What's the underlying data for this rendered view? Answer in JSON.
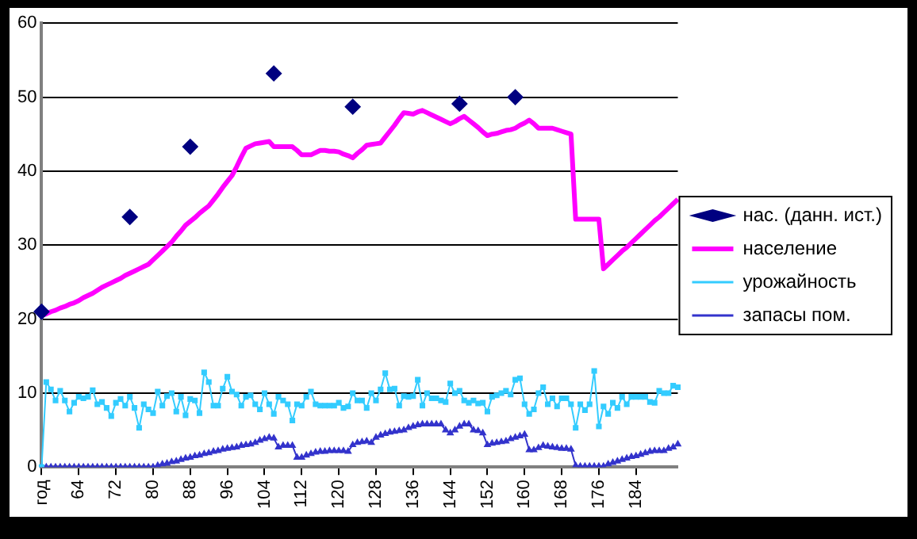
{
  "chart_data": {
    "type": "line",
    "categories": [
      "год",
      null,
      null,
      null,
      null,
      null,
      null,
      null,
      "64",
      null,
      null,
      null,
      null,
      null,
      null,
      null,
      "72",
      null,
      null,
      null,
      null,
      null,
      null,
      null,
      "80",
      null,
      null,
      null,
      null,
      null,
      null,
      null,
      "88",
      null,
      null,
      null,
      null,
      null,
      null,
      null,
      "96",
      null,
      null,
      null,
      null,
      null,
      null,
      null,
      "104",
      null,
      null,
      null,
      null,
      null,
      null,
      null,
      "112",
      null,
      null,
      null,
      null,
      null,
      null,
      null,
      "120",
      null,
      null,
      null,
      null,
      null,
      null,
      null,
      "128",
      null,
      null,
      null,
      null,
      null,
      null,
      null,
      "136",
      null,
      null,
      null,
      null,
      null,
      null,
      null,
      "144",
      null,
      null,
      null,
      null,
      null,
      null,
      null,
      "152",
      null,
      null,
      null,
      null,
      null,
      null,
      null,
      "160",
      null,
      null,
      null,
      null,
      null,
      null,
      null,
      "168",
      null,
      null,
      null,
      null,
      null,
      null,
      null,
      "176",
      null,
      null,
      null,
      null,
      null,
      null,
      null,
      "184",
      null,
      null,
      null,
      null,
      null,
      null,
      null,
      null,
      null
    ],
    "series": [
      {
        "name": "нас. (данн. ист.)",
        "type": "scatter",
        "marker": "diamond",
        "color": "#000080",
        "values": [
          21,
          null,
          null,
          null,
          null,
          null,
          null,
          null,
          null,
          null,
          null,
          null,
          null,
          null,
          null,
          null,
          null,
          null,
          null,
          33.8,
          null,
          null,
          null,
          null,
          null,
          null,
          null,
          null,
          null,
          null,
          null,
          null,
          43.3,
          null,
          null,
          null,
          null,
          null,
          null,
          null,
          null,
          null,
          null,
          null,
          null,
          null,
          null,
          null,
          null,
          null,
          53.2,
          null,
          null,
          null,
          null,
          null,
          null,
          null,
          null,
          null,
          null,
          null,
          null,
          null,
          null,
          null,
          null,
          48.7,
          null,
          null,
          null,
          null,
          null,
          null,
          null,
          null,
          null,
          null,
          null,
          null,
          null,
          null,
          null,
          null,
          null,
          null,
          null,
          null,
          null,
          null,
          49.1,
          null,
          null,
          null,
          null,
          null,
          null,
          null,
          null,
          null,
          null,
          null,
          50.0,
          null,
          null,
          null,
          null,
          null,
          null,
          null,
          null,
          null,
          null,
          null,
          null,
          null,
          null,
          null,
          null,
          null,
          null,
          null,
          null,
          null,
          null,
          null,
          null,
          null,
          null,
          null,
          null,
          null,
          null,
          null,
          null,
          null,
          null,
          null
        ]
      },
      {
        "name": "население",
        "type": "line",
        "marker": "none",
        "color": "#ff00ff",
        "values": [
          20.5,
          20.7,
          21.0,
          21.2,
          21.5,
          21.7,
          22.0,
          22.2,
          22.5,
          22.9,
          23.2,
          23.5,
          23.9,
          24.3,
          24.6,
          24.9,
          25.2,
          25.5,
          25.9,
          26.2,
          26.5,
          26.8,
          27.1,
          27.4,
          28.0,
          28.6,
          29.2,
          29.8,
          30.4,
          31.2,
          31.9,
          32.7,
          33.2,
          33.7,
          34.3,
          34.8,
          35.3,
          36.1,
          36.9,
          37.8,
          38.6,
          39.4,
          40.6,
          41.9,
          43.1,
          43.4,
          43.7,
          43.8,
          43.9,
          44.0,
          43.3,
          43.3,
          43.3,
          43.3,
          43.3,
          42.8,
          42.2,
          42.2,
          42.2,
          42.5,
          42.8,
          42.8,
          42.7,
          42.7,
          42.6,
          42.3,
          42.1,
          41.8,
          42.4,
          42.9,
          43.5,
          43.6,
          43.7,
          43.8,
          44.6,
          45.4,
          46.2,
          47.1,
          47.9,
          47.8,
          47.7,
          48.0,
          48.2,
          47.9,
          47.6,
          47.3,
          47.0,
          46.7,
          46.4,
          46.7,
          47.1,
          47.4,
          46.9,
          46.4,
          45.9,
          45.3,
          44.8,
          45.0,
          45.1,
          45.3,
          45.5,
          45.6,
          45.8,
          46.2,
          46.5,
          46.9,
          46.4,
          45.8,
          45.8,
          45.8,
          45.8,
          45.6,
          45.4,
          45.2,
          45.0,
          33.5,
          33.5,
          33.5,
          33.5,
          33.5,
          33.5,
          26.8,
          27.4,
          28.0,
          28.6,
          29.2,
          29.7,
          30.3,
          30.9,
          31.5,
          32.1,
          32.7,
          33.3,
          33.8,
          34.4,
          35.0,
          35.6,
          36.2
        ]
      },
      {
        "name": "урожайность",
        "type": "line",
        "marker": "square",
        "color": "#33ccff",
        "values": [
          0,
          11.5,
          10.5,
          9,
          10.3,
          9,
          7.5,
          8.7,
          9.5,
          9.3,
          9.5,
          10.4,
          8.5,
          8.8,
          8.0,
          6.9,
          8.7,
          9.2,
          8.3,
          9.5,
          8.0,
          5.3,
          8.5,
          7.8,
          7.3,
          10.2,
          8.3,
          9.6,
          10.0,
          7.5,
          9.5,
          7.0,
          9.2,
          9.0,
          7.3,
          12.8,
          11.5,
          8.3,
          8.3,
          10.6,
          12.2,
          10.2,
          9.8,
          8.3,
          9.5,
          9.7,
          8.5,
          7.8,
          10.0,
          8.5,
          7.2,
          9.5,
          9.0,
          8.5,
          6.3,
          8.5,
          8.3,
          9.5,
          10.2,
          8.5,
          8.3,
          8.3,
          8.3,
          8.3,
          8.7,
          8.0,
          8.2,
          10.0,
          9.0,
          9.0,
          8.0,
          10.0,
          9.0,
          10.5,
          12.7,
          10.5,
          10.6,
          8.3,
          9.6,
          9.5,
          9.6,
          11.8,
          8.3,
          10.0,
          9.3,
          9.3,
          9.0,
          8.8,
          11.3,
          10.0,
          10.3,
          9.0,
          8.7,
          9.0,
          8.6,
          8.7,
          7.5,
          9.5,
          9.7,
          10.0,
          10.3,
          9.8,
          11.8,
          12.0,
          8.5,
          7.2,
          7.8,
          10.0,
          10.8,
          8.5,
          9.3,
          8.2,
          9.3,
          9.3,
          8.5,
          5.3,
          8.5,
          7.7,
          8.5,
          13.0,
          5.5,
          8.2,
          7.2,
          8.7,
          8.0,
          9.5,
          8.5,
          9.5,
          9.5,
          9.5,
          9.5,
          8.8,
          8.7,
          10.3,
          10.0,
          10.0,
          11.0,
          10.8
        ]
      },
      {
        "name": "запасы пом.",
        "type": "line",
        "marker": "triangle",
        "color": "#3333cc",
        "values": [
          0,
          0,
          0,
          0,
          0,
          0,
          0,
          0,
          0,
          0,
          0,
          0,
          0,
          0,
          0,
          0,
          0,
          0,
          0,
          0,
          0,
          0,
          0,
          0,
          0,
          0.2,
          0.4,
          0.5,
          0.7,
          0.8,
          1.0,
          1.2,
          1.3,
          1.5,
          1.6,
          1.8,
          1.9,
          2.1,
          2.2,
          2.4,
          2.5,
          2.6,
          2.7,
          2.9,
          3.0,
          3.1,
          3.3,
          3.6,
          3.8,
          4.0,
          3.9,
          2.7,
          2.9,
          2.9,
          2.9,
          1.3,
          1.3,
          1.6,
          1.8,
          2.0,
          2.1,
          2.1,
          2.2,
          2.2,
          2.2,
          2.2,
          2.1,
          3.0,
          3.3,
          3.4,
          3.5,
          3.3,
          4.0,
          4.3,
          4.5,
          4.7,
          4.8,
          4.9,
          5.0,
          5.3,
          5.5,
          5.7,
          5.8,
          5.8,
          5.8,
          5.8,
          5.8,
          5.0,
          4.6,
          5.0,
          5.5,
          5.8,
          5.8,
          5.0,
          4.9,
          4.6,
          3.0,
          3.2,
          3.3,
          3.4,
          3.5,
          3.8,
          4.0,
          4.2,
          4.4,
          2.3,
          2.3,
          2.6,
          2.9,
          2.8,
          2.7,
          2.6,
          2.5,
          2.5,
          2.4,
          0.2,
          0.1,
          0.1,
          0.1,
          0.1,
          0.1,
          0.1,
          0.4,
          0.6,
          0.8,
          1.0,
          1.2,
          1.4,
          1.5,
          1.7,
          1.9,
          2.1,
          2.2,
          2.2,
          2.2,
          2.5,
          2.7,
          3.1
        ]
      }
    ],
    "ylim": [
      0,
      60
    ],
    "yticks": [
      0,
      10,
      20,
      30,
      40,
      50,
      60
    ],
    "grid": "y",
    "legend": "right"
  }
}
